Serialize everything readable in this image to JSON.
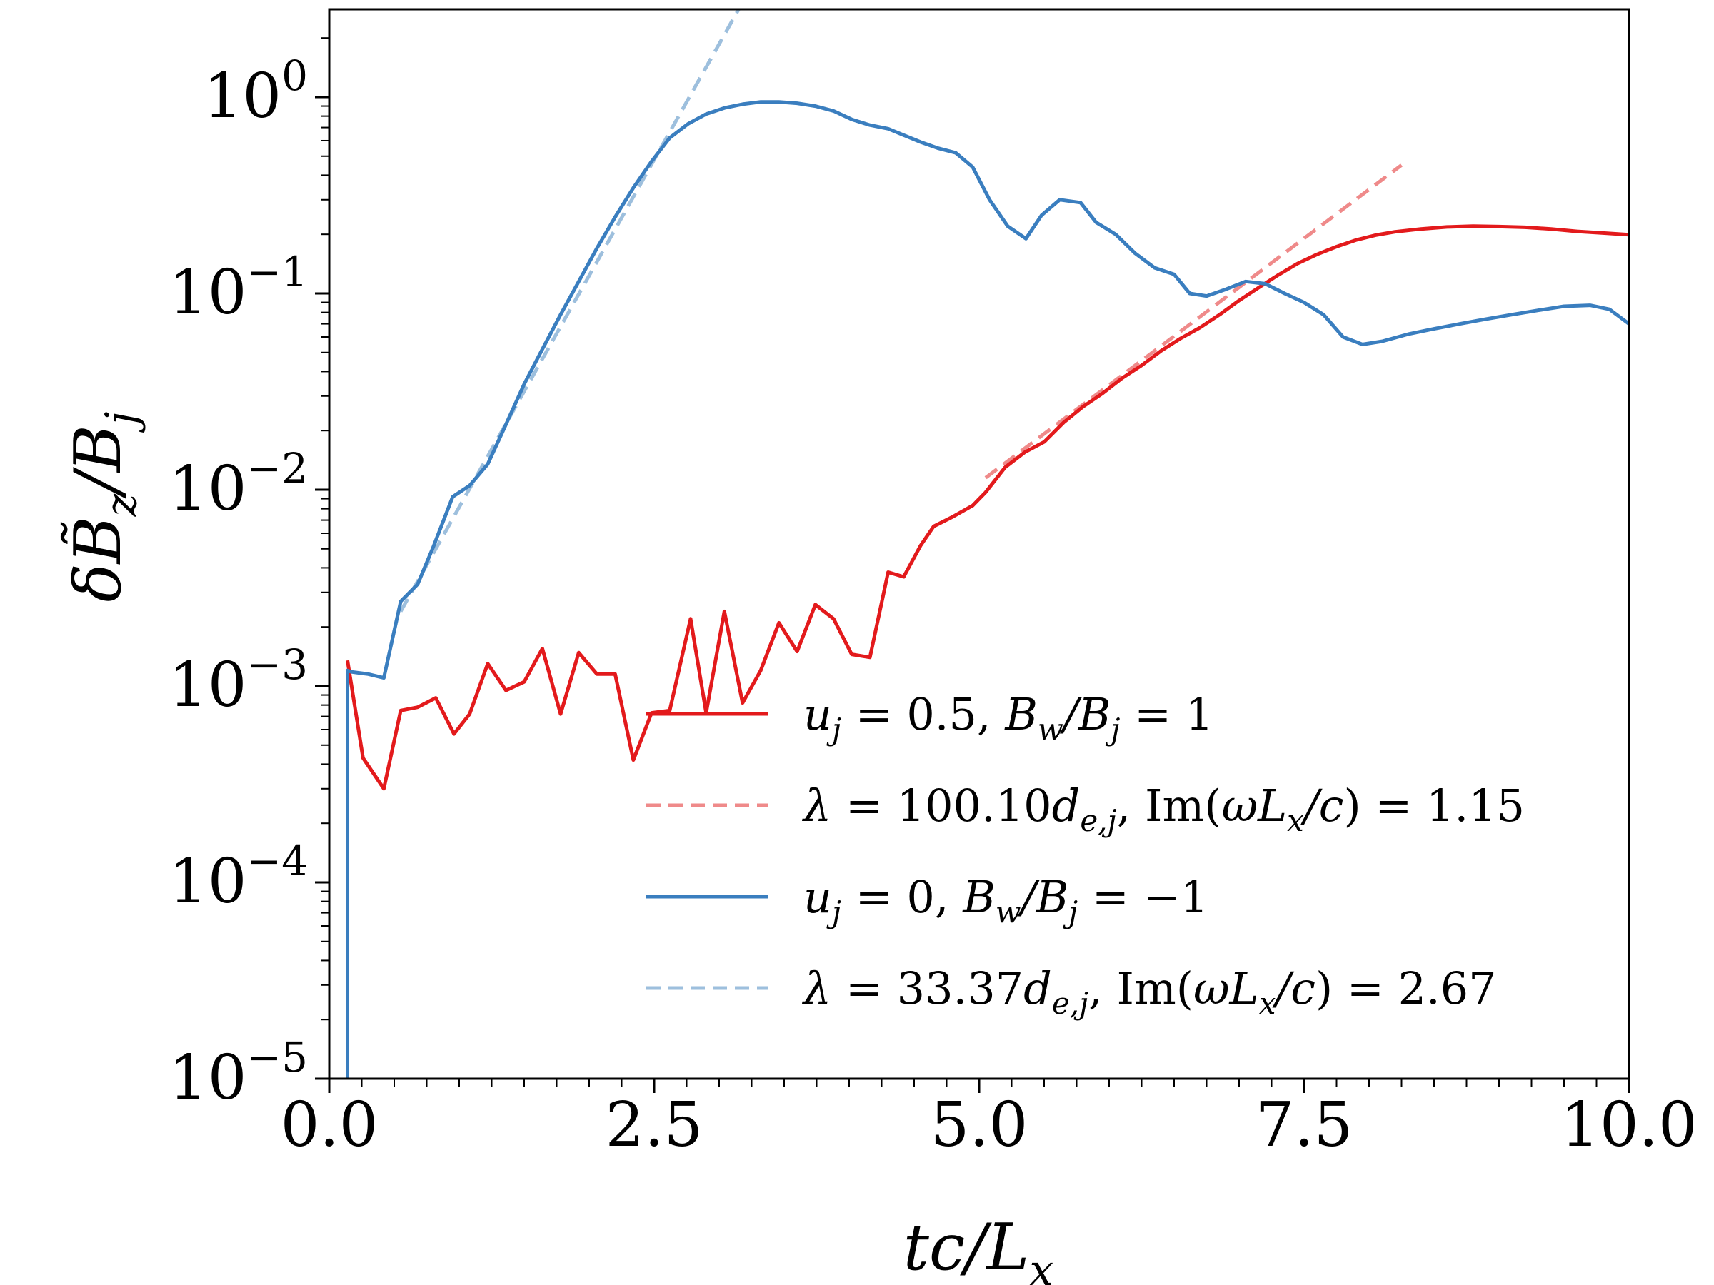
{
  "chart_data": {
    "type": "line",
    "xlabel": "tc/L_x",
    "ylabel": "δB̃_z/B_j",
    "xlim": [
      0,
      10
    ],
    "ylim": [
      1e-05,
      2.8
    ],
    "yscale": "log",
    "grid": false,
    "legend_position": "lower-right",
    "x_ticks": [
      "0.0",
      "2.5",
      "5.0",
      "7.5",
      "10.0"
    ],
    "y_ticks": [
      {
        "base": "10",
        "exp": "0"
      },
      {
        "base": "10",
        "exp": "−1"
      },
      {
        "base": "10",
        "exp": "−2"
      },
      {
        "base": "10",
        "exp": "−3"
      },
      {
        "base": "10",
        "exp": "−4"
      },
      {
        "base": "10",
        "exp": "−5"
      }
    ],
    "series": [
      {
        "name": "u_j = 0.5, B_w/B_j = 1",
        "color": "#e31a1c",
        "style": "solid",
        "x": [
          0.14,
          0.26,
          0.42,
          0.55,
          0.68,
          0.82,
          0.96,
          1.08,
          1.22,
          1.36,
          1.5,
          1.64,
          1.78,
          1.92,
          2.06,
          2.2,
          2.34,
          2.48,
          2.62,
          2.78,
          2.9,
          3.04,
          3.18,
          3.32,
          3.46,
          3.6,
          3.74,
          3.88,
          4.02,
          4.16,
          4.3,
          4.42,
          4.55,
          4.65,
          4.8,
          4.95,
          5.05,
          5.2,
          5.35,
          5.5,
          5.65,
          5.8,
          5.95,
          6.1,
          6.25,
          6.4,
          6.55,
          6.7,
          6.85,
          7.0,
          7.15,
          7.3,
          7.45,
          7.6,
          7.75,
          7.9,
          8.05,
          8.2,
          8.4,
          8.6,
          8.8,
          9.0,
          9.2,
          9.4,
          9.6,
          9.8,
          10.0
        ],
        "y": [
          0.00135,
          0.00043,
          0.0003,
          0.00075,
          0.00078,
          0.00087,
          0.00057,
          0.00072,
          0.0013,
          0.00095,
          0.00105,
          0.00155,
          0.00072,
          0.00148,
          0.00115,
          0.00115,
          0.00042,
          0.00073,
          0.00075,
          0.0022,
          0.00073,
          0.0024,
          0.00082,
          0.0012,
          0.0021,
          0.0015,
          0.0026,
          0.0022,
          0.00145,
          0.0014,
          0.0038,
          0.0036,
          0.0052,
          0.0065,
          0.0073,
          0.0083,
          0.0097,
          0.013,
          0.0155,
          0.0175,
          0.022,
          0.0265,
          0.031,
          0.037,
          0.043,
          0.051,
          0.059,
          0.067,
          0.078,
          0.092,
          0.107,
          0.124,
          0.142,
          0.158,
          0.173,
          0.187,
          0.198,
          0.206,
          0.213,
          0.218,
          0.22,
          0.219,
          0.217,
          0.213,
          0.207,
          0.203,
          0.199
        ]
      },
      {
        "name": "λ = 100.10 d_e,j, Im(ωL_x/c) = 1.15",
        "color": "#ef8a8a",
        "style": "dashed",
        "x": [
          5.05,
          8.25
        ],
        "y": [
          0.0115,
          0.45
        ]
      },
      {
        "name": "u_j = 0, B_w/B_j = −1",
        "color": "#3a7ebf",
        "style": "solid",
        "x": [
          0.14,
          0.14,
          0.17,
          0.3,
          0.42,
          0.55,
          0.68,
          0.8,
          0.95,
          1.08,
          1.22,
          1.36,
          1.5,
          1.64,
          1.78,
          1.92,
          2.06,
          2.2,
          2.34,
          2.48,
          2.62,
          2.76,
          2.9,
          3.04,
          3.18,
          3.32,
          3.46,
          3.6,
          3.74,
          3.88,
          4.02,
          4.16,
          4.3,
          4.42,
          4.55,
          4.68,
          4.82,
          4.95,
          5.08,
          5.22,
          5.36,
          5.48,
          5.62,
          5.78,
          5.9,
          6.05,
          6.2,
          6.35,
          6.5,
          6.62,
          6.75,
          6.9,
          7.05,
          7.2,
          7.35,
          7.5,
          7.65,
          7.8,
          7.95,
          8.1,
          8.3,
          8.5,
          8.7,
          8.9,
          9.1,
          9.3,
          9.5,
          9.7,
          9.85,
          10.0
        ],
        "y": [
          1e-05,
          0.0012,
          0.00118,
          0.00115,
          0.0011,
          0.0027,
          0.0033,
          0.0051,
          0.0092,
          0.0105,
          0.0135,
          0.0215,
          0.0345,
          0.052,
          0.078,
          0.115,
          0.17,
          0.245,
          0.345,
          0.47,
          0.62,
          0.73,
          0.82,
          0.88,
          0.92,
          0.945,
          0.945,
          0.93,
          0.9,
          0.85,
          0.77,
          0.72,
          0.69,
          0.64,
          0.59,
          0.55,
          0.52,
          0.44,
          0.3,
          0.22,
          0.19,
          0.25,
          0.3,
          0.29,
          0.23,
          0.2,
          0.16,
          0.135,
          0.125,
          0.1,
          0.097,
          0.105,
          0.115,
          0.112,
          0.1,
          0.09,
          0.078,
          0.06,
          0.055,
          0.057,
          0.062,
          0.066,
          0.07,
          0.074,
          0.078,
          0.082,
          0.086,
          0.087,
          0.083,
          0.07
        ]
      },
      {
        "name": "λ = 33.37 d_e,j, Im(ωL_x/c) = 2.67",
        "color": "#9dbfdd",
        "style": "dashed",
        "x": [
          0.55,
          3.15
        ],
        "y": [
          0.0024,
          2.8
        ]
      }
    ]
  }
}
